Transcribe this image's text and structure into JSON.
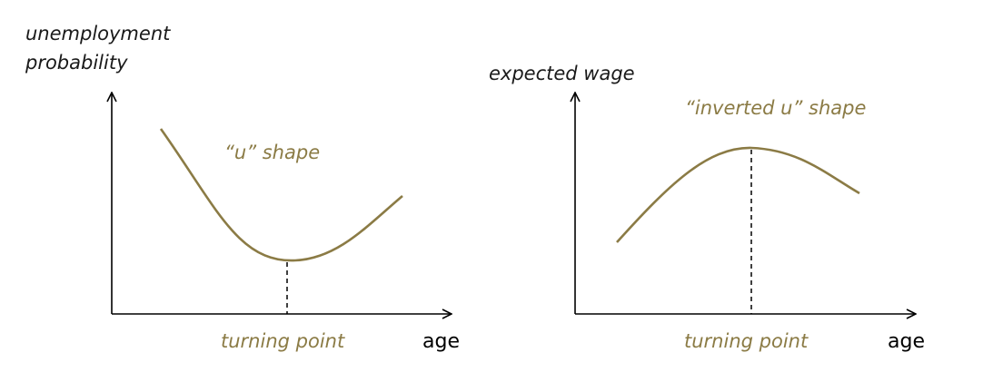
{
  "colors": {
    "curve": "#8b7b45",
    "text_accent": "#8b7b45",
    "axis": "#000000"
  },
  "left_panel": {
    "ylabel_line1": "unemployment",
    "ylabel_line2": "probability",
    "curve_label": "“u” shape",
    "marker_label": "turning point",
    "xlabel": "age"
  },
  "right_panel": {
    "ylabel": "expected wage",
    "curve_label": "“inverted u” shape",
    "marker_label": "turning point",
    "xlabel": "age"
  }
}
